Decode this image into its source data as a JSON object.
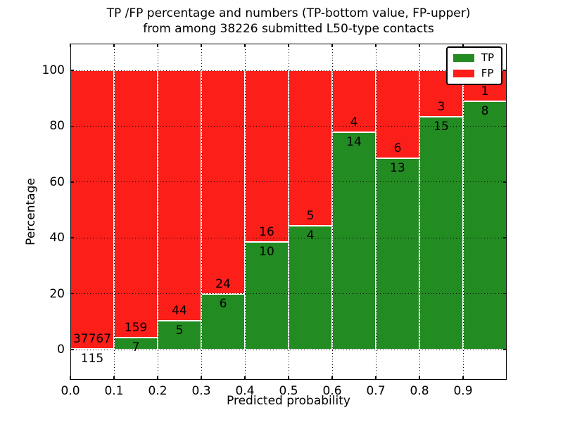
{
  "figure": {
    "title_line1": "TP /FP percentage and numbers (TP-bottom value, FP-upper)",
    "title_line2": "from among 38226 submitted L50-type contacts"
  },
  "axes": {
    "xlabel": "Predicted probability",
    "ylabel": "Percentage",
    "x_tick_labels": [
      "0.0",
      "0.1",
      "0.2",
      "0.3",
      "0.4",
      "0.5",
      "0.6",
      "0.7",
      "0.8",
      "0.9"
    ],
    "y_tick_labels": [
      "0",
      "20",
      "40",
      "60",
      "80",
      "100"
    ],
    "y_tick_values": [
      0,
      20,
      40,
      60,
      80,
      100
    ]
  },
  "chart_data": {
    "type": "bar",
    "stacked": true,
    "normalized_to_percent": true,
    "title": "TP /FP percentage and numbers (TP-bottom value, FP-upper) from among 38226 submitted L50-type contacts",
    "xlabel": "Predicted probability",
    "ylabel": "Percentage",
    "total_submitted_contacts": 38226,
    "bin_edges": [
      0.0,
      0.1,
      0.2,
      0.3,
      0.4,
      0.5,
      0.6,
      0.7,
      0.8,
      0.9,
      1.0
    ],
    "categories": [
      "0.0-0.1",
      "0.1-0.2",
      "0.2-0.3",
      "0.3-0.4",
      "0.4-0.5",
      "0.5-0.6",
      "0.6-0.7",
      "0.7-0.8",
      "0.8-0.9",
      "0.9-1.0"
    ],
    "series": [
      {
        "name": "TP",
        "color": "#228b22",
        "counts": [
          115,
          7,
          5,
          6,
          10,
          4,
          14,
          13,
          15,
          8
        ],
        "percent": [
          0.3,
          4.2,
          10.2,
          20.0,
          38.5,
          44.4,
          77.8,
          68.4,
          83.3,
          88.9
        ]
      },
      {
        "name": "FP",
        "color": "#fb1e19",
        "counts": [
          37767,
          159,
          44,
          24,
          16,
          5,
          4,
          6,
          3,
          1
        ],
        "percent": [
          99.7,
          95.8,
          89.8,
          80.0,
          61.5,
          55.6,
          22.2,
          31.6,
          16.7,
          11.1
        ]
      }
    ],
    "ylim": [
      0,
      100
    ],
    "grid": true,
    "legend_position": "upper right"
  }
}
